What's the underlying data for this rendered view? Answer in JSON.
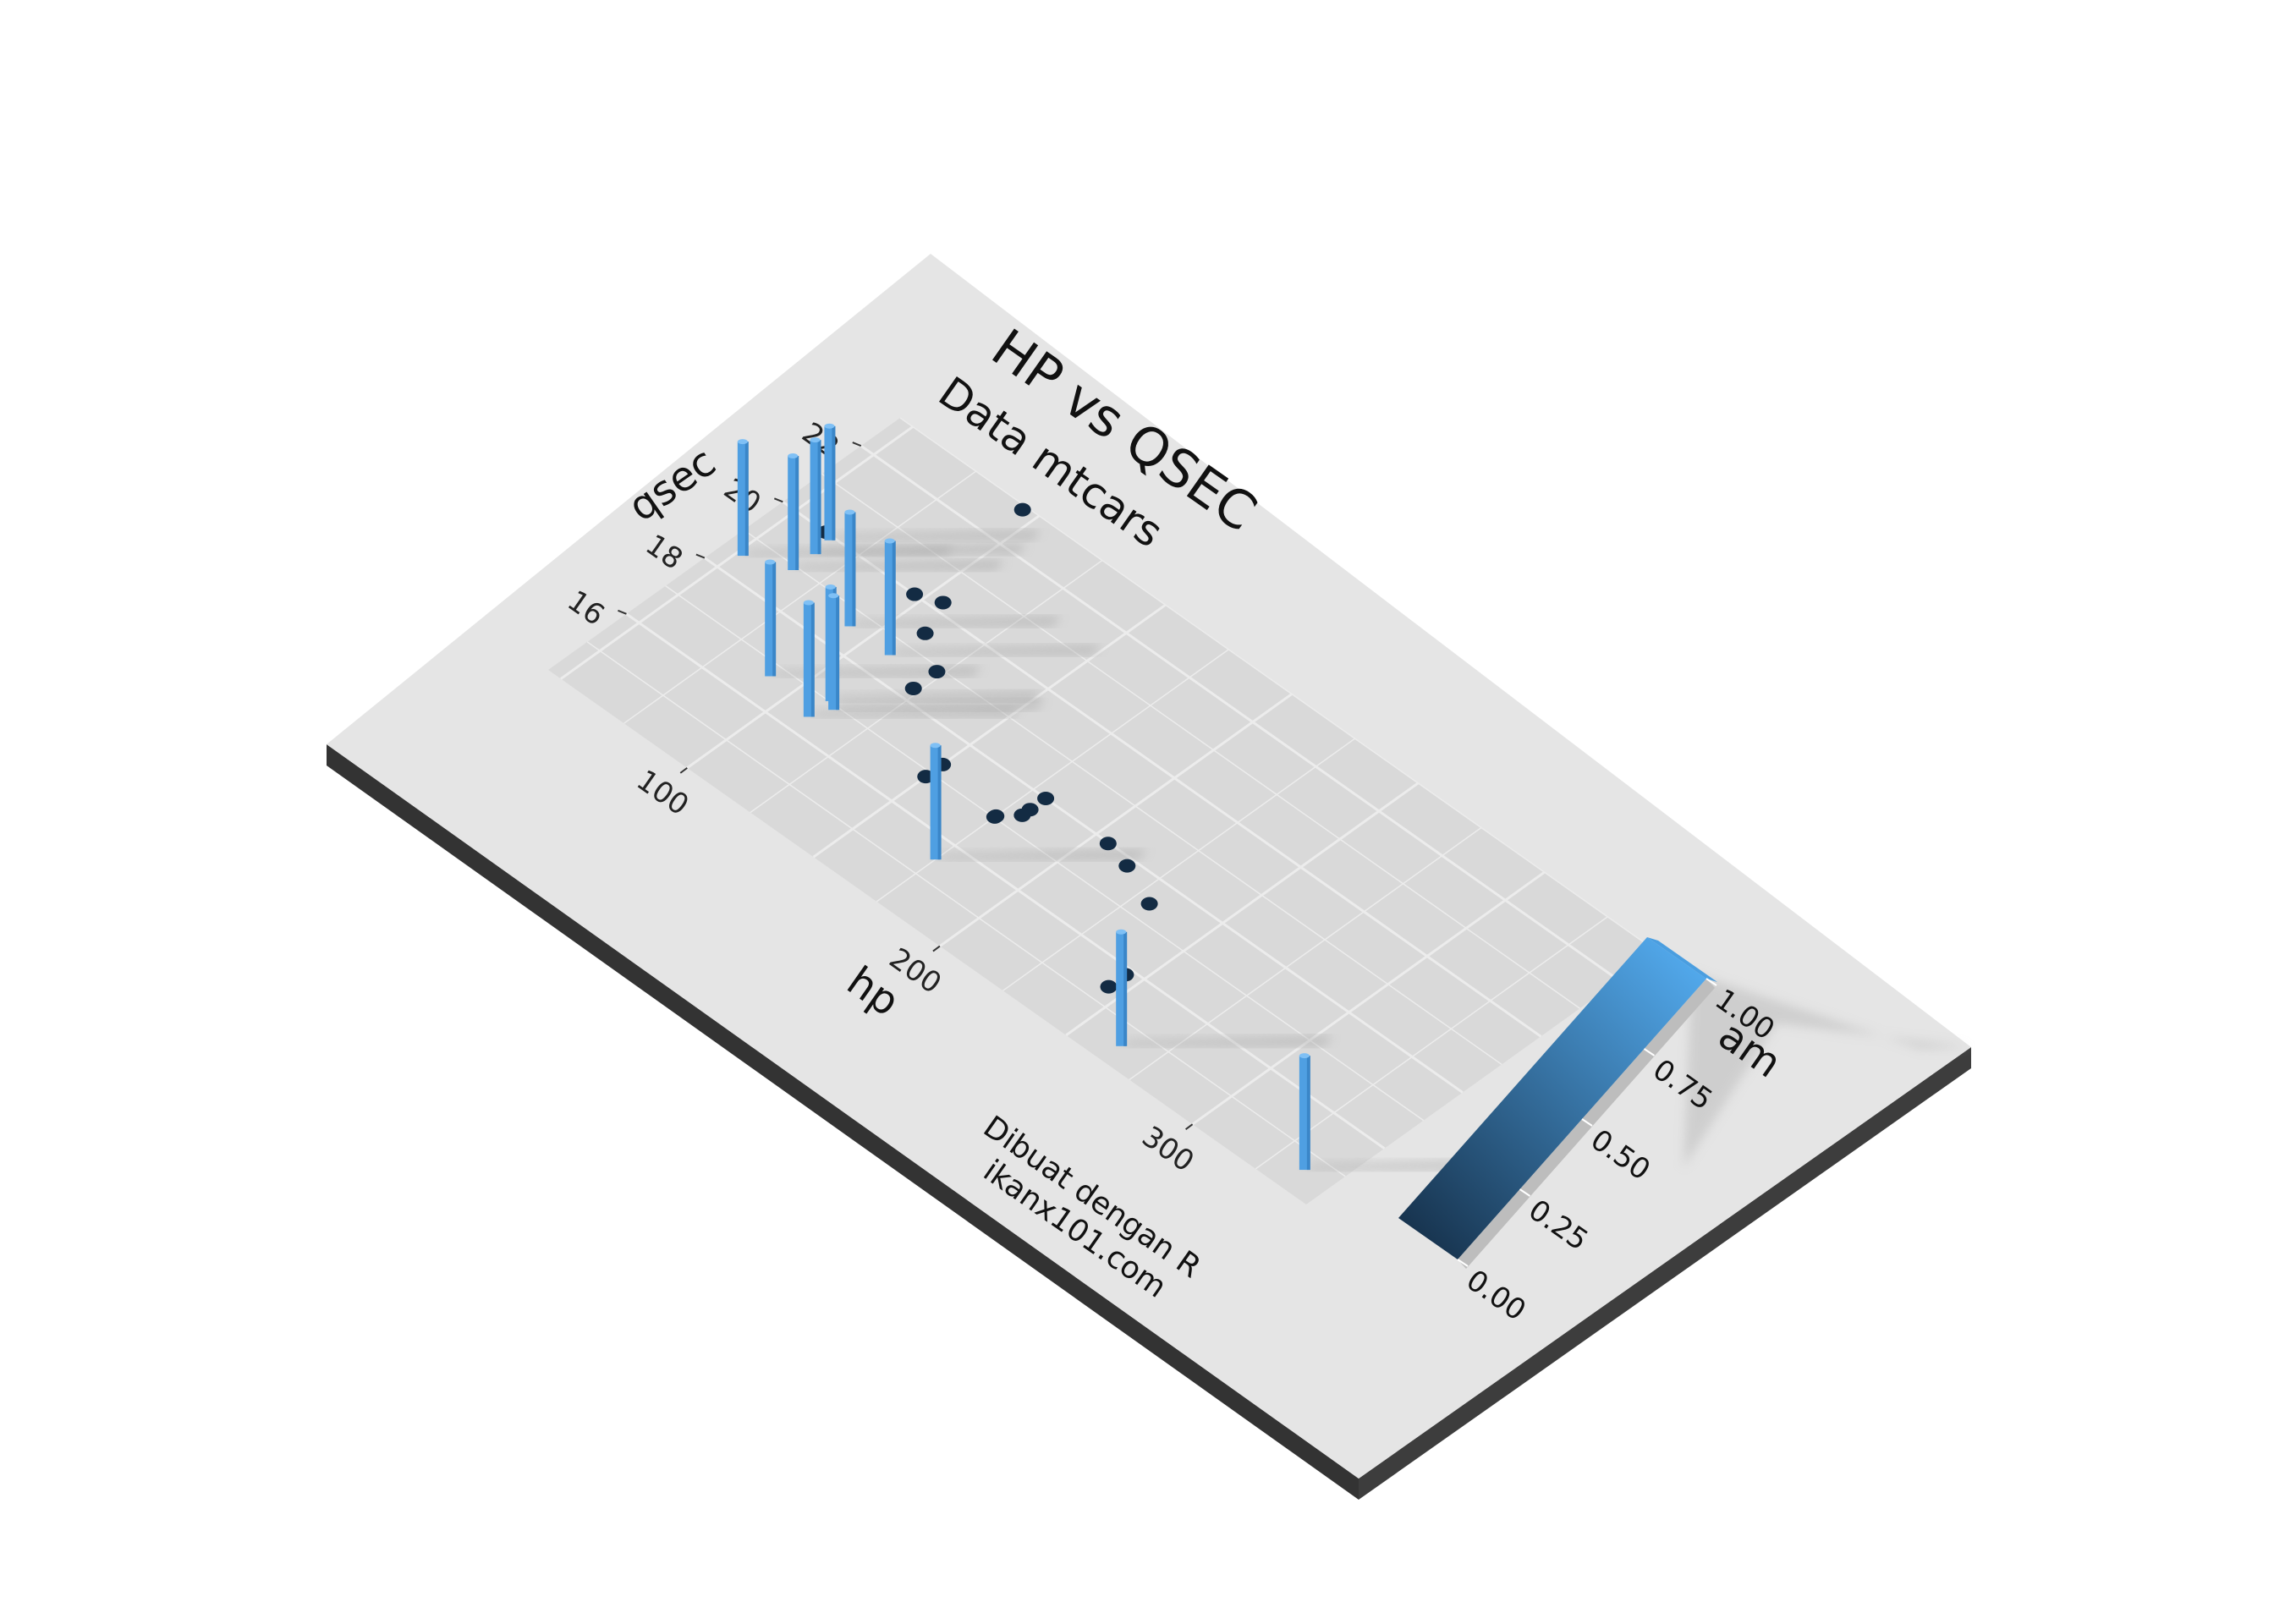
{
  "chart_data": {
    "type": "scatter",
    "title": "HP vs QSEC",
    "subtitle": "Data mtcars",
    "caption_line1": "Dibuat dengan R",
    "caption_line2": "ikanx101.com",
    "xlabel": "hp",
    "ylabel": "qsec",
    "xlim": [
      45,
      345
    ],
    "ylim": [
      14.0,
      23.0
    ],
    "x_ticks": [
      "100",
      "200",
      "300"
    ],
    "y_ticks": [
      "16",
      "18",
      "20",
      "22"
    ],
    "height_variable": "am",
    "legend": {
      "title": "am",
      "ticks": [
        "0.00",
        "0.25",
        "0.50",
        "0.75",
        "1.00"
      ],
      "low_color": "#132B43",
      "high_color": "#56B1F7",
      "placement": "bottom-right"
    },
    "grid": true,
    "background_color": "#e5e5e5",
    "panel_color": "#d9d9d9",
    "points": [
      {
        "x": 110,
        "y": 16.46,
        "am": 1
      },
      {
        "x": 110,
        "y": 17.02,
        "am": 1
      },
      {
        "x": 93,
        "y": 18.61,
        "am": 1
      },
      {
        "x": 110,
        "y": 19.44,
        "am": 0
      },
      {
        "x": 175,
        "y": 17.02,
        "am": 0
      },
      {
        "x": 105,
        "y": 20.22,
        "am": 0
      },
      {
        "x": 245,
        "y": 15.84,
        "am": 0
      },
      {
        "x": 62,
        "y": 20.0,
        "am": 0
      },
      {
        "x": 95,
        "y": 22.9,
        "am": 0
      },
      {
        "x": 123,
        "y": 18.3,
        "am": 0
      },
      {
        "x": 123,
        "y": 18.9,
        "am": 0
      },
      {
        "x": 180,
        "y": 17.4,
        "am": 0
      },
      {
        "x": 180,
        "y": 17.6,
        "am": 0
      },
      {
        "x": 180,
        "y": 18.0,
        "am": 0
      },
      {
        "x": 205,
        "y": 17.98,
        "am": 0
      },
      {
        "x": 215,
        "y": 17.82,
        "am": 0
      },
      {
        "x": 230,
        "y": 17.42,
        "am": 0
      },
      {
        "x": 66,
        "y": 19.47,
        "am": 1
      },
      {
        "x": 52,
        "y": 18.52,
        "am": 1
      },
      {
        "x": 65,
        "y": 19.9,
        "am": 1
      },
      {
        "x": 97,
        "y": 20.01,
        "am": 0
      },
      {
        "x": 150,
        "y": 16.87,
        "am": 0
      },
      {
        "x": 150,
        "y": 17.3,
        "am": 0
      },
      {
        "x": 245,
        "y": 15.41,
        "am": 0
      },
      {
        "x": 175,
        "y": 17.05,
        "am": 0
      },
      {
        "x": 66,
        "y": 18.9,
        "am": 1
      },
      {
        "x": 91,
        "y": 16.7,
        "am": 1
      },
      {
        "x": 113,
        "y": 16.9,
        "am": 1
      },
      {
        "x": 264,
        "y": 14.5,
        "am": 1
      },
      {
        "x": 175,
        "y": 15.5,
        "am": 1
      },
      {
        "x": 335,
        "y": 14.6,
        "am": 1
      },
      {
        "x": 109,
        "y": 18.6,
        "am": 1
      }
    ]
  }
}
